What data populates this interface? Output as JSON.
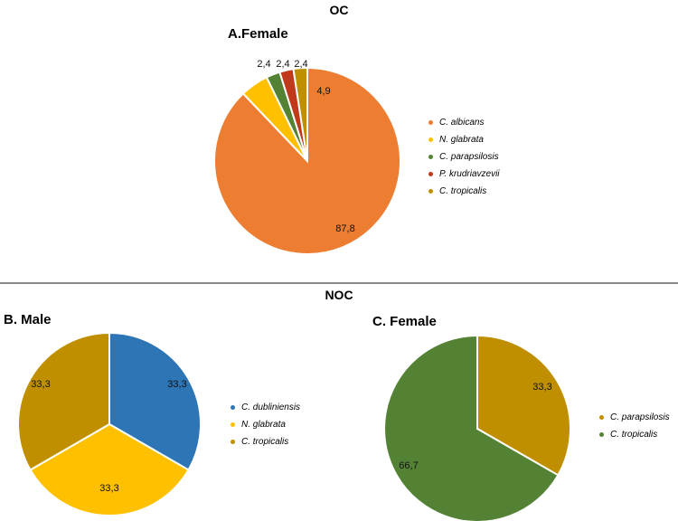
{
  "titles": {
    "oc": "OC",
    "noc": "NOC"
  },
  "chart_data": [
    {
      "type": "pie",
      "title": "A.Female",
      "group": "OC",
      "labels": [
        "C. albicans",
        "N. glabrata",
        "C. parapsilosis",
        "P. krudriavzevii",
        "C. tropicalis"
      ],
      "values": [
        87.8,
        4.9,
        2.4,
        2.4,
        2.4
      ],
      "value_labels": [
        "87,8",
        "4,9",
        "2,4",
        "2,4",
        "2,4"
      ],
      "colors": [
        "#ED7D31",
        "#FFC000",
        "#548235",
        "#C0391B",
        "#BF8F00"
      ],
      "legend_position": "right"
    },
    {
      "type": "pie",
      "title": "B. Male",
      "group": "NOC",
      "labels": [
        "C. dubliniensis",
        "N. glabrata",
        "C. tropicalis"
      ],
      "values": [
        33.3,
        33.3,
        33.3
      ],
      "value_labels": [
        "33,3",
        "33,3",
        "33,3"
      ],
      "colors": [
        "#2E75B6",
        "#FFC000",
        "#BF8F00"
      ],
      "legend_position": "right"
    },
    {
      "type": "pie",
      "title": "C. Female",
      "group": "NOC",
      "labels": [
        "C. parapsilosis",
        "C. tropicalis"
      ],
      "values": [
        33.3,
        66.7
      ],
      "value_labels": [
        "33,3",
        "66,7"
      ],
      "colors": [
        "#BF8F00",
        "#548235"
      ],
      "legend_position": "right"
    }
  ]
}
